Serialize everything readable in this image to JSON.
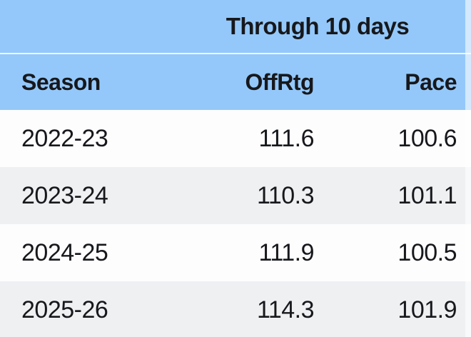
{
  "chart_data": {
    "type": "table",
    "title": "Through 10 days",
    "columns": [
      "Season",
      "OffRtg",
      "Pace"
    ],
    "rows": [
      [
        "2022-23",
        "111.6",
        "100.6"
      ],
      [
        "2023-24",
        "110.3",
        "101.1"
      ],
      [
        "2024-25",
        "111.9",
        "100.5"
      ],
      [
        "2025-26",
        "114.3",
        "101.9"
      ]
    ],
    "layout_hints": {
      "banner_spans": "OffRtg and Pace columns",
      "row_striping": [
        "white",
        "grey",
        "white",
        "grey"
      ],
      "last_row_clipped": true
    },
    "colors": {
      "header_blue": "#94c8fa",
      "row_alt_grey": "#eef0f2",
      "row_white": "#fdfdfe",
      "separator_white": "#f2f8fe",
      "text": "#17181c"
    }
  }
}
